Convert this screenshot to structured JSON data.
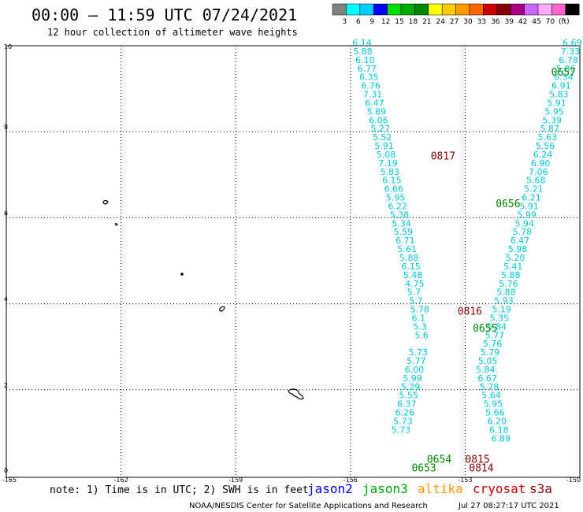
{
  "header": {
    "title": "00:00 — 11:59 UTC 07/24/2021",
    "subtitle": "12 hour collection of altimeter wave heights"
  },
  "legend": {
    "colors": [
      "#808080",
      "#00ffff",
      "#00ccff",
      "#0000ff",
      "#00dd00",
      "#00aa00",
      "#008800",
      "#ffff00",
      "#ffcc00",
      "#ff9900",
      "#ff6600",
      "#cc0000",
      "#880000",
      "#aa0088",
      "#cc66ff",
      "#ffaaff",
      "#ff66cc",
      "#000000"
    ],
    "labels": [
      "3",
      "6",
      "9",
      "12",
      "15",
      "18",
      "21",
      "24",
      "27",
      "30",
      "33",
      "36",
      "39",
      "42",
      "45",
      "70",
      "(ft)"
    ]
  },
  "axes": {
    "x_ticks": [
      "-165",
      "-162",
      "-159",
      "-156",
      "-153",
      "-150"
    ],
    "y_ticks": [
      "0",
      "2",
      "4",
      "6",
      "8",
      "10"
    ]
  },
  "footer": {
    "note": "note:  1) Time is in UTC; 2) SWH is in feet",
    "satellites": [
      {
        "name": "jason2",
        "color": "#0000ff"
      },
      {
        "name": "jason3",
        "color": "#00aa00"
      },
      {
        "name": "altika",
        "color": "#ff9900"
      },
      {
        "name": "cryosat",
        "color": "#cc0000"
      },
      {
        "name": "s3a",
        "color": "#880000"
      }
    ],
    "credit": "NOAA/NESDIS Center for Satellite Applications and Research",
    "timestamp": "Jul 27 08:27:17 UTC 2021"
  },
  "map": {
    "colors": {
      "swh": "#00c8d8",
      "jason3": "#008800",
      "s3a": "#880000"
    },
    "pass_labels": [
      {
        "text": "0817",
        "lon": -153.9,
        "lat": 7.35,
        "sat": "s3a"
      },
      {
        "text": "0657",
        "lon": -150.75,
        "lat": 9.3,
        "sat": "jason3"
      },
      {
        "text": "0656",
        "lon": -152.2,
        "lat": 6.25,
        "sat": "jason3"
      },
      {
        "text": "0816",
        "lon": -153.2,
        "lat": 3.75,
        "sat": "s3a"
      },
      {
        "text": "0655",
        "lon": -152.8,
        "lat": 3.35,
        "sat": "jason3"
      },
      {
        "text": "0654",
        "lon": -154.0,
        "lat": 0.3,
        "sat": "jason3"
      },
      {
        "text": "0653",
        "lon": -154.4,
        "lat": 0.1,
        "sat": "jason3"
      },
      {
        "text": "0815",
        "lon": -153.0,
        "lat": 0.3,
        "sat": "s3a"
      },
      {
        "text": "0814",
        "lon": -152.9,
        "lat": 0.1,
        "sat": "s3a"
      }
    ],
    "track_a": [
      {
        "lon": -155.95,
        "lat": 10.0,
        "v": "6.14"
      },
      {
        "lon": -155.93,
        "lat": 9.8,
        "v": "5.88"
      },
      {
        "lon": -155.87,
        "lat": 9.6,
        "v": "6.10"
      },
      {
        "lon": -155.82,
        "lat": 9.4,
        "v": "6.77"
      },
      {
        "lon": -155.77,
        "lat": 9.2,
        "v": "6.35"
      },
      {
        "lon": -155.72,
        "lat": 9.0,
        "v": "6.76"
      },
      {
        "lon": -155.67,
        "lat": 8.8,
        "v": "7.31"
      },
      {
        "lon": -155.62,
        "lat": 8.6,
        "v": "6.47"
      },
      {
        "lon": -155.57,
        "lat": 8.4,
        "v": "5.89"
      },
      {
        "lon": -155.52,
        "lat": 8.2,
        "v": "6.06"
      },
      {
        "lon": -155.47,
        "lat": 8.0,
        "v": "5.27"
      },
      {
        "lon": -155.42,
        "lat": 7.8,
        "v": "5.52"
      },
      {
        "lon": -155.37,
        "lat": 7.6,
        "v": "5.91"
      },
      {
        "lon": -155.32,
        "lat": 7.4,
        "v": "5.08"
      },
      {
        "lon": -155.27,
        "lat": 7.2,
        "v": "7.19"
      },
      {
        "lon": -155.22,
        "lat": 7.0,
        "v": "5.83"
      },
      {
        "lon": -155.17,
        "lat": 6.8,
        "v": "6.15"
      },
      {
        "lon": -155.12,
        "lat": 6.6,
        "v": "6.66"
      },
      {
        "lon": -155.07,
        "lat": 6.4,
        "v": "5.95"
      },
      {
        "lon": -155.02,
        "lat": 6.2,
        "v": "6.22"
      },
      {
        "lon": -154.97,
        "lat": 6.0,
        "v": "5.38"
      },
      {
        "lon": -154.92,
        "lat": 5.8,
        "v": "5.34"
      },
      {
        "lon": -154.87,
        "lat": 5.6,
        "v": "5.59"
      },
      {
        "lon": -154.82,
        "lat": 5.4,
        "v": "6.71"
      },
      {
        "lon": -154.77,
        "lat": 5.2,
        "v": "5.61"
      },
      {
        "lon": -154.72,
        "lat": 5.0,
        "v": "5.88"
      },
      {
        "lon": -154.67,
        "lat": 4.8,
        "v": "6.15"
      },
      {
        "lon": -154.62,
        "lat": 4.6,
        "v": "5.48"
      },
      {
        "lon": -154.57,
        "lat": 4.4,
        "v": "4.75"
      },
      {
        "lon": -154.52,
        "lat": 4.2,
        "v": "5.7"
      },
      {
        "lon": -154.47,
        "lat": 4.0,
        "v": "5.7"
      },
      {
        "lon": -154.44,
        "lat": 3.8,
        "v": "5.78"
      },
      {
        "lon": -154.4,
        "lat": 3.6,
        "v": "6.1"
      },
      {
        "lon": -154.36,
        "lat": 3.4,
        "v": "5.3"
      },
      {
        "lon": -154.32,
        "lat": 3.2,
        "v": "5.6"
      }
    ],
    "track_b": [
      {
        "lon": -154.48,
        "lat": 2.8,
        "v": "5.73"
      },
      {
        "lon": -154.53,
        "lat": 2.6,
        "v": "5.77"
      },
      {
        "lon": -154.58,
        "lat": 2.4,
        "v": "6.00"
      },
      {
        "lon": -154.63,
        "lat": 2.2,
        "v": "5.99"
      },
      {
        "lon": -154.68,
        "lat": 2.0,
        "v": "5.29"
      },
      {
        "lon": -154.73,
        "lat": 1.8,
        "v": "5.55"
      },
      {
        "lon": -154.78,
        "lat": 1.6,
        "v": "6.37"
      },
      {
        "lon": -154.83,
        "lat": 1.4,
        "v": "6.26"
      },
      {
        "lon": -154.88,
        "lat": 1.2,
        "v": "5.73"
      },
      {
        "lon": -154.93,
        "lat": 1.0,
        "v": "5.73"
      }
    ],
    "track_c": [
      {
        "lon": -150.45,
        "lat": 10.0,
        "v": "6.69"
      },
      {
        "lon": -150.5,
        "lat": 9.8,
        "v": "7.33"
      },
      {
        "lon": -150.55,
        "lat": 9.6,
        "v": "6.78"
      },
      {
        "lon": -150.62,
        "lat": 9.4,
        "v": "5.86"
      },
      {
        "lon": -150.68,
        "lat": 9.2,
        "v": "6.54"
      },
      {
        "lon": -150.74,
        "lat": 9.0,
        "v": "6.91"
      },
      {
        "lon": -150.8,
        "lat": 8.8,
        "v": "5.83"
      },
      {
        "lon": -150.86,
        "lat": 8.6,
        "v": "5.91"
      },
      {
        "lon": -150.92,
        "lat": 8.4,
        "v": "5.95"
      },
      {
        "lon": -150.98,
        "lat": 8.2,
        "v": "5.39"
      },
      {
        "lon": -151.04,
        "lat": 8.0,
        "v": "5.87"
      },
      {
        "lon": -151.1,
        "lat": 7.8,
        "v": "5.63"
      },
      {
        "lon": -151.16,
        "lat": 7.6,
        "v": "5.56"
      },
      {
        "lon": -151.22,
        "lat": 7.4,
        "v": "6.24"
      },
      {
        "lon": -151.28,
        "lat": 7.2,
        "v": "6.90"
      },
      {
        "lon": -151.34,
        "lat": 7.0,
        "v": "7.06"
      },
      {
        "lon": -151.4,
        "lat": 6.8,
        "v": "5.68"
      },
      {
        "lon": -151.46,
        "lat": 6.6,
        "v": "5.21"
      },
      {
        "lon": -151.52,
        "lat": 6.4,
        "v": "6.21"
      },
      {
        "lon": -151.58,
        "lat": 6.2,
        "v": "5.91"
      },
      {
        "lon": -151.64,
        "lat": 6.0,
        "v": "5.99"
      },
      {
        "lon": -151.7,
        "lat": 5.8,
        "v": "5.94"
      },
      {
        "lon": -151.76,
        "lat": 5.6,
        "v": "5.78"
      },
      {
        "lon": -151.82,
        "lat": 5.4,
        "v": "6.47"
      },
      {
        "lon": -151.88,
        "lat": 5.2,
        "v": "5.98"
      },
      {
        "lon": -151.94,
        "lat": 5.0,
        "v": "5.20"
      },
      {
        "lon": -152.0,
        "lat": 4.8,
        "v": "5.41"
      },
      {
        "lon": -152.06,
        "lat": 4.6,
        "v": "5.88"
      },
      {
        "lon": -152.12,
        "lat": 4.4,
        "v": "5.76"
      },
      {
        "lon": -152.18,
        "lat": 4.2,
        "v": "5.88"
      },
      {
        "lon": -152.24,
        "lat": 4.0,
        "v": "5.93"
      },
      {
        "lon": -152.3,
        "lat": 3.8,
        "v": "5.19"
      },
      {
        "lon": -152.36,
        "lat": 3.6,
        "v": "5.35"
      },
      {
        "lon": -152.42,
        "lat": 3.4,
        "v": "5.84"
      },
      {
        "lon": -152.48,
        "lat": 3.2,
        "v": "5.77"
      },
      {
        "lon": -152.54,
        "lat": 3.0,
        "v": "5.76"
      },
      {
        "lon": -152.6,
        "lat": 2.8,
        "v": "5.79"
      },
      {
        "lon": -152.66,
        "lat": 2.6,
        "v": "5.05"
      },
      {
        "lon": -152.72,
        "lat": 2.4,
        "v": "5.84"
      }
    ],
    "track_d": [
      {
        "lon": -152.67,
        "lat": 2.2,
        "v": "6.67"
      },
      {
        "lon": -152.62,
        "lat": 2.0,
        "v": "5.78"
      },
      {
        "lon": -152.57,
        "lat": 1.8,
        "v": "5.64"
      },
      {
        "lon": -152.52,
        "lat": 1.6,
        "v": "5.95"
      },
      {
        "lon": -152.47,
        "lat": 1.4,
        "v": "5.66"
      },
      {
        "lon": -152.42,
        "lat": 1.2,
        "v": "6.20"
      },
      {
        "lon": -152.37,
        "lat": 1.0,
        "v": "6.18"
      },
      {
        "lon": -152.32,
        "lat": 0.8,
        "v": "6.89"
      }
    ]
  }
}
